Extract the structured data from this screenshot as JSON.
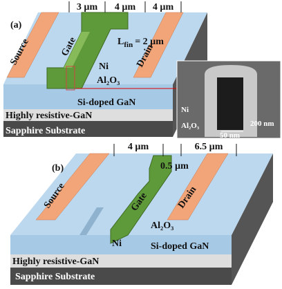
{
  "panels": [
    {
      "label": "(a)",
      "dimensions": [
        "3 µm",
        "4 µm",
        "4 µm"
      ],
      "source": "Source",
      "gate": "Gate",
      "drain": "Drain",
      "fin_length": {
        "symbol": "L",
        "subscript": "fin",
        "value": "= 2 µm"
      },
      "metal": "Ni",
      "dielectric": "Al₂O₃",
      "layers": [
        "Si-doped GaN",
        "Highly resistive-GaN",
        "Sapphire Substrate"
      ],
      "inset": {
        "metal": "Ni",
        "dielectric": "Al₂O₃",
        "height": "200 nm",
        "width": "50 nm"
      }
    },
    {
      "label": "(b)",
      "dimensions": [
        "4 µm",
        "6.5 µm",
        "0.5 µm"
      ],
      "source": "Source",
      "gate": "Gate",
      "drain": "Drain",
      "metal": "Ni",
      "dielectric": "Al₂O₃",
      "layers": [
        "Si-doped GaN",
        "Highly resistive-GaN",
        "Sapphire Substrate"
      ]
    }
  ]
}
